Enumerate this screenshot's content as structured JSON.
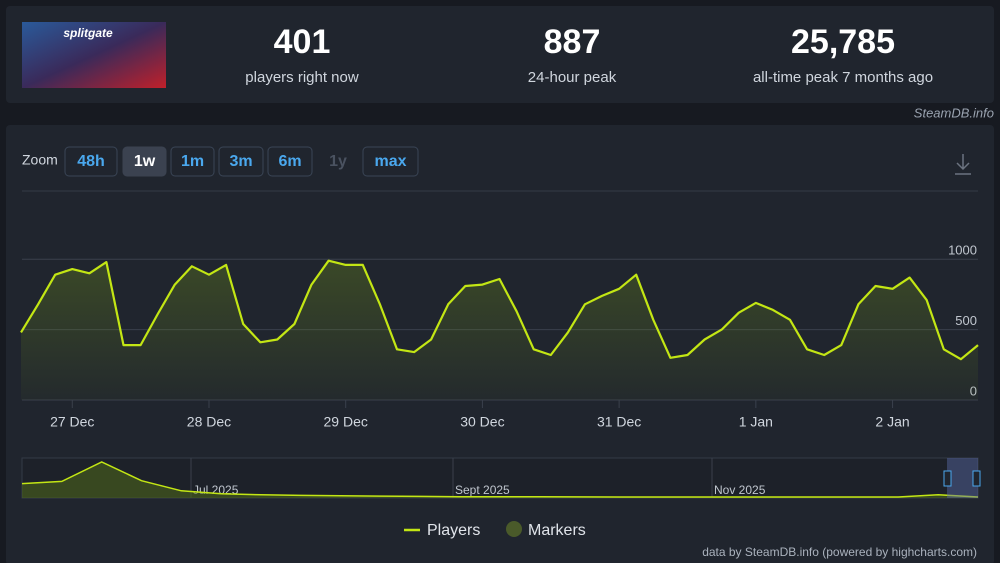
{
  "header": {
    "game_logo": "splitgate",
    "stats": [
      {
        "value": "401",
        "label": "players right now"
      },
      {
        "value": "887",
        "label": "24-hour peak"
      },
      {
        "value": "25,785",
        "label": "all-time peak 7 months ago"
      }
    ],
    "source": "SteamDB.info"
  },
  "zoom": {
    "label": "Zoom",
    "buttons": [
      {
        "label": "48h",
        "state": "normal"
      },
      {
        "label": "1w",
        "state": "active"
      },
      {
        "label": "1m",
        "state": "normal"
      },
      {
        "label": "3m",
        "state": "normal"
      },
      {
        "label": "6m",
        "state": "normal"
      },
      {
        "label": "1y",
        "state": "disabled"
      },
      {
        "label": "max",
        "state": "normal"
      }
    ]
  },
  "chart_data": {
    "type": "line",
    "categories": [
      null,
      null,
      null,
      "27 Dec",
      null,
      null,
      null,
      null,
      null,
      null,
      null,
      "28 Dec",
      null,
      null,
      null,
      null,
      null,
      null,
      null,
      "29 Dec",
      null,
      null,
      null,
      null,
      null,
      null,
      null,
      "30 Dec",
      null,
      null,
      null,
      null,
      null,
      null,
      null,
      "31 Dec",
      null,
      null,
      null,
      null,
      null,
      null,
      null,
      "1 Jan",
      null,
      null,
      null,
      null,
      null,
      null,
      null,
      "2 Jan",
      null,
      null,
      null,
      null,
      null
    ],
    "series": [
      {
        "name": "Players",
        "color": "#c3e614",
        "values": [
          480,
          680,
          890,
          930,
          900,
          980,
          390,
          390,
          610,
          820,
          950,
          890,
          960,
          540,
          410,
          430,
          540,
          820,
          990,
          960,
          960,
          680,
          360,
          340,
          430,
          680,
          810,
          820,
          860,
          630,
          360,
          320,
          480,
          680,
          740,
          790,
          890,
          570,
          300,
          320,
          430,
          500,
          620,
          690,
          640,
          570,
          360,
          320,
          390,
          680,
          810,
          790,
          870,
          710,
          360,
          290,
          390
        ]
      }
    ],
    "markers_legend": {
      "name": "Markers",
      "color": "#4a5a2a"
    },
    "ylim": [
      0,
      1485
    ],
    "yticks": [
      0,
      500,
      1000
    ],
    "grid": true,
    "navigator": {
      "labels": [
        "Jul 2025",
        "Sept 2025",
        "Nov 2025"
      ],
      "values": [
        10000,
        11500,
        25000,
        12000,
        5000,
        3000,
        2200,
        1800,
        1500,
        1300,
        1100,
        900,
        800,
        800,
        750,
        700,
        700,
        700,
        700,
        700,
        700,
        700,
        700,
        2300,
        700
      ]
    },
    "credits": "data by SteamDB.info (powered by highcharts.com)"
  }
}
